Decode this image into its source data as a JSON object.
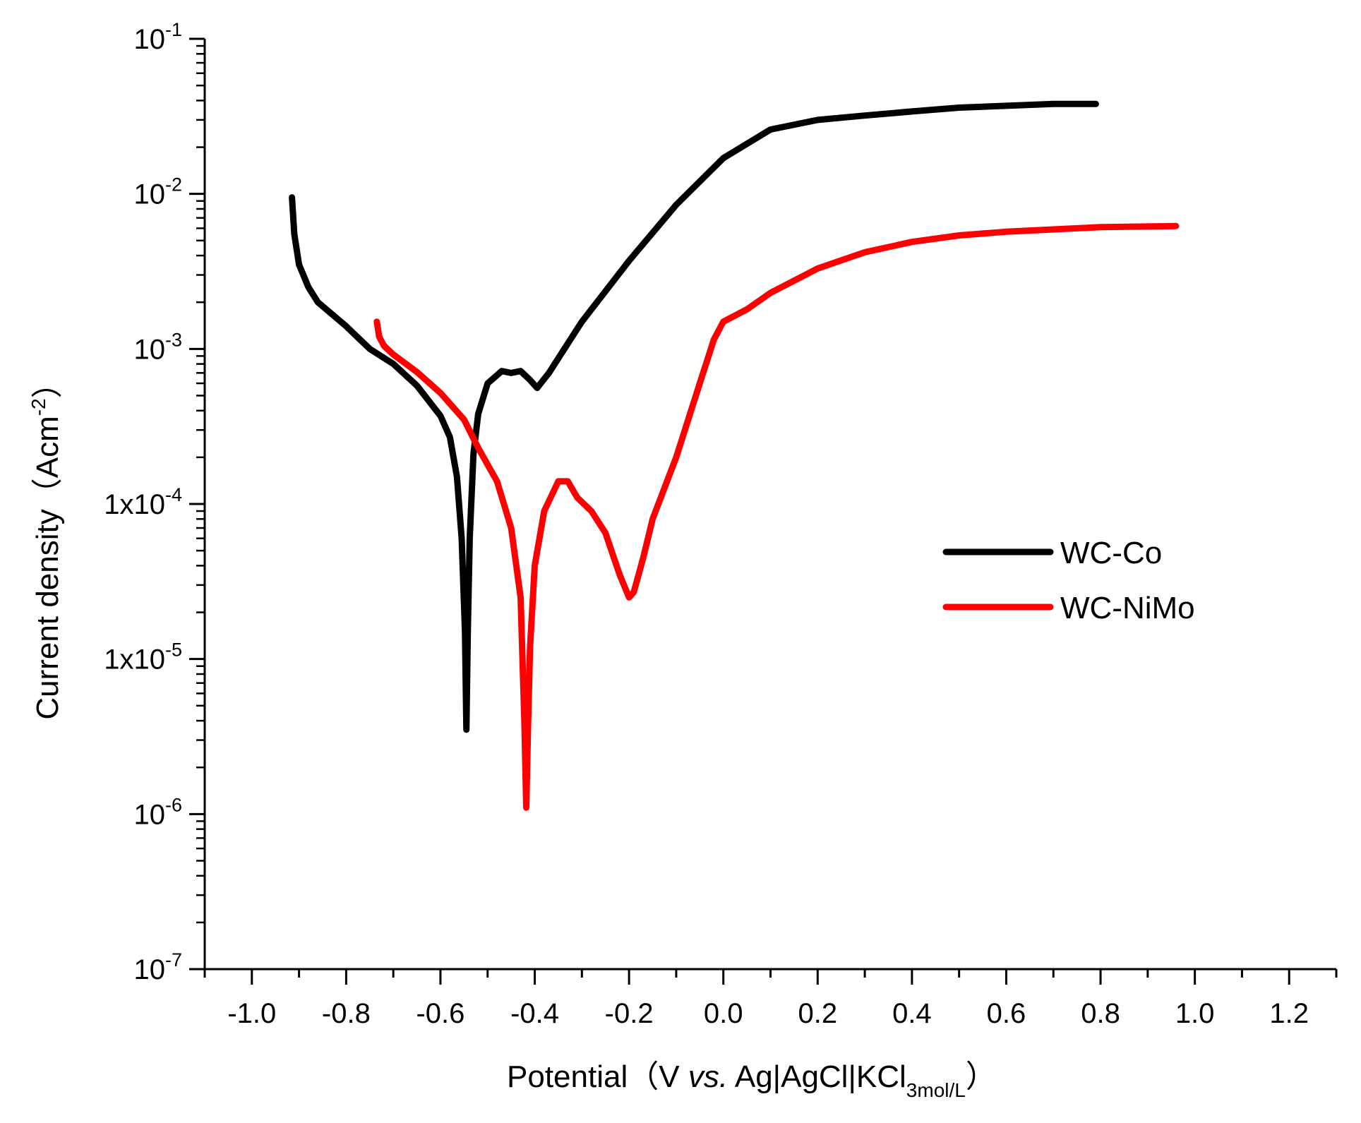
{
  "chart_data": {
    "type": "line",
    "x_axis": {
      "label": "Potential（V vs. Ag|AgCl|KCl3mol/L）",
      "label_parts": {
        "prefix": "Potential（V ",
        "italic": "vs.",
        "middle": " Ag|AgCl|KCl",
        "subscript": "3mol/L",
        "suffix": "）"
      },
      "range": [
        -1.1,
        1.3
      ],
      "ticks": [
        -1.0,
        -0.8,
        -0.6,
        -0.4,
        -0.2,
        0.0,
        0.2,
        0.4,
        0.6,
        0.8,
        1.0,
        1.2
      ],
      "tick_labels": [
        "-1.0",
        "-0.8",
        "-0.6",
        "-0.4",
        "-0.2",
        "0.0",
        "0.2",
        "0.4",
        "0.6",
        "0.8",
        "1.0",
        "1.2"
      ]
    },
    "y_axis": {
      "label": "Current density（Acm-2）",
      "label_parts": {
        "main": "Current density（Acm",
        "superscript": "-2",
        "suffix": "）"
      },
      "scale": "log",
      "range": [
        1e-07,
        0.1
      ],
      "ticks": [
        {
          "value": 0.1,
          "base": "10",
          "exp": "-1"
        },
        {
          "value": 0.01,
          "base": "10",
          "exp": "-2"
        },
        {
          "value": 0.001,
          "base": "10",
          "exp": "-3"
        },
        {
          "value": 0.0001,
          "base": "1x10",
          "exp": "-4"
        },
        {
          "value": 1e-05,
          "base": "1x10",
          "exp": "-5"
        },
        {
          "value": 1e-06,
          "base": "10",
          "exp": "-6"
        },
        {
          "value": 1e-07,
          "base": "10",
          "exp": "-7"
        }
      ]
    },
    "legend_position": "right-center",
    "grid": false,
    "series": [
      {
        "name": "WC-Co",
        "color": "#000000",
        "points": [
          [
            -0.915,
            0.0095
          ],
          [
            -0.91,
            0.0055
          ],
          [
            -0.9,
            0.0035
          ],
          [
            -0.88,
            0.0025
          ],
          [
            -0.86,
            0.002
          ],
          [
            -0.8,
            0.0014
          ],
          [
            -0.75,
            0.001
          ],
          [
            -0.7,
            0.0008
          ],
          [
            -0.65,
            0.00058
          ],
          [
            -0.6,
            0.00037
          ],
          [
            -0.58,
            0.00027
          ],
          [
            -0.565,
            0.00015
          ],
          [
            -0.555,
            6e-05
          ],
          [
            -0.548,
            1.5e-05
          ],
          [
            -0.545,
            3.5e-06
          ],
          [
            -0.542,
            1.5e-05
          ],
          [
            -0.538,
            6e-05
          ],
          [
            -0.53,
            0.00021
          ],
          [
            -0.52,
            0.00038
          ],
          [
            -0.5,
            0.0006
          ],
          [
            -0.47,
            0.00072
          ],
          [
            -0.45,
            0.0007
          ],
          [
            -0.43,
            0.00072
          ],
          [
            -0.41,
            0.00063
          ],
          [
            -0.395,
            0.00056
          ],
          [
            -0.37,
            0.0007
          ],
          [
            -0.3,
            0.0015
          ],
          [
            -0.2,
            0.0037
          ],
          [
            -0.1,
            0.0085
          ],
          [
            0.0,
            0.017
          ],
          [
            0.1,
            0.026
          ],
          [
            0.2,
            0.03
          ],
          [
            0.3,
            0.032
          ],
          [
            0.4,
            0.034
          ],
          [
            0.5,
            0.036
          ],
          [
            0.6,
            0.037
          ],
          [
            0.7,
            0.038
          ],
          [
            0.79,
            0.038
          ]
        ]
      },
      {
        "name": "WC-NiMo",
        "color": "#ff0000",
        "points": [
          [
            -0.735,
            0.0015
          ],
          [
            -0.73,
            0.0012
          ],
          [
            -0.72,
            0.00105
          ],
          [
            -0.7,
            0.00092
          ],
          [
            -0.65,
            0.00071
          ],
          [
            -0.6,
            0.00052
          ],
          [
            -0.55,
            0.00035
          ],
          [
            -0.52,
            0.00023
          ],
          [
            -0.48,
            0.00014
          ],
          [
            -0.45,
            7e-05
          ],
          [
            -0.43,
            2.5e-05
          ],
          [
            -0.422,
            4e-06
          ],
          [
            -0.418,
            1.1e-06
          ],
          [
            -0.414,
            4e-06
          ],
          [
            -0.41,
            1.2e-05
          ],
          [
            -0.4,
            4e-05
          ],
          [
            -0.38,
            9e-05
          ],
          [
            -0.35,
            0.00014
          ],
          [
            -0.33,
            0.00014
          ],
          [
            -0.31,
            0.00011
          ],
          [
            -0.28,
            9e-05
          ],
          [
            -0.25,
            6.5e-05
          ],
          [
            -0.22,
            3.5e-05
          ],
          [
            -0.2,
            2.5e-05
          ],
          [
            -0.19,
            2.7e-05
          ],
          [
            -0.17,
            4.5e-05
          ],
          [
            -0.15,
            8e-05
          ],
          [
            -0.1,
            0.0002
          ],
          [
            -0.05,
            0.0006
          ],
          [
            -0.02,
            0.00115
          ],
          [
            0.0,
            0.0015
          ],
          [
            0.05,
            0.0018
          ],
          [
            0.1,
            0.0023
          ],
          [
            0.2,
            0.0033
          ],
          [
            0.3,
            0.0042
          ],
          [
            0.4,
            0.0049
          ],
          [
            0.5,
            0.0054
          ],
          [
            0.6,
            0.0057
          ],
          [
            0.7,
            0.0059
          ],
          [
            0.8,
            0.0061
          ],
          [
            0.96,
            0.0062
          ]
        ]
      }
    ]
  }
}
